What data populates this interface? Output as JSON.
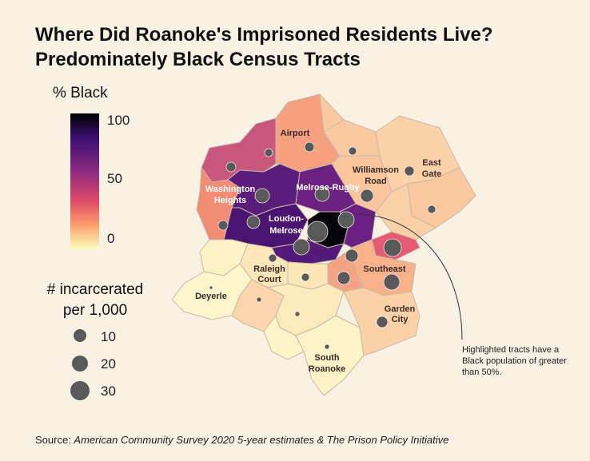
{
  "title": {
    "line1": "Where Did Roanoke's Imprisoned Residents Live?",
    "line2": "Predominately Black Census Tracts"
  },
  "color_legend": {
    "title": "% Black",
    "ticks": [
      "100",
      "50",
      "0"
    ],
    "scale": "magma"
  },
  "size_legend": {
    "title_line1": "# incarcerated",
    "title_line2": "per 1,000",
    "entries": [
      {
        "label": "10",
        "value": 10
      },
      {
        "label": "20",
        "value": 20
      },
      {
        "label": "30",
        "value": 30
      }
    ]
  },
  "neighborhoods": {
    "airport": "Airport",
    "williamson1": "Williamson",
    "williamson2": "Road",
    "eastgate1": "East",
    "eastgate2": "Gate",
    "washington1": "Washington",
    "washington2": "Heights",
    "melrose_rugby": "Melrose-Rugby",
    "loudon1": "Loudon-",
    "loudon2": "Melrose",
    "raleigh1": "Raleigh",
    "raleigh2": "Court",
    "southeast": "Southeast",
    "deyerle": "Deyerle",
    "garden1": "Garden",
    "garden2": "City",
    "south1": "South",
    "south2": "Roanoke"
  },
  "annotation": "Highlighted tracts have a Black population of greater than 50%.",
  "source": {
    "prefix": "Source: ",
    "text": "American Community Survey 2020 5-year estimates & The Prison Policy Initiative"
  },
  "colors": {
    "background": "#f8f1e4",
    "dot": "#595959"
  }
}
